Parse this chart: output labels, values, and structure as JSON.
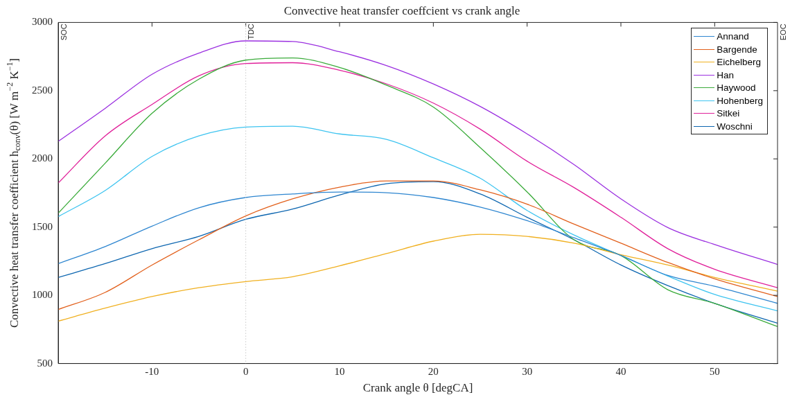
{
  "chart_data": {
    "type": "line",
    "title": "Convective heat transfer coeffcient vs crank angle",
    "xlabel": "Crank angle θ [degCA]",
    "ylabel": "Convective heat transfer coefficient h$_{conv}$(θ) [W m$^{−2}$ K$^{−1}$]",
    "x": [
      -20,
      -15,
      -10,
      -5,
      0,
      5,
      10,
      15,
      20,
      25,
      30,
      35,
      40,
      45,
      50,
      56.7
    ],
    "series": [
      {
        "name": "Annand",
        "color": "#2e86d0",
        "values": [
          1232,
          1357,
          1507,
          1642,
          1717,
          1743,
          1757,
          1752,
          1717,
          1647,
          1547,
          1422,
          1292,
          1146,
          1066,
          941
        ]
      },
      {
        "name": "Bargende",
        "color": "#e2601c",
        "values": [
          896,
          1021,
          1222,
          1407,
          1582,
          1707,
          1793,
          1838,
          1838,
          1773,
          1668,
          1522,
          1382,
          1241,
          1121,
          991
        ]
      },
      {
        "name": "Eichelberg",
        "color": "#f0b020",
        "values": [
          811,
          906,
          991,
          1056,
          1101,
          1136,
          1216,
          1306,
          1397,
          1447,
          1432,
          1382,
          1297,
          1222,
          1131,
          1031
        ]
      },
      {
        "name": "Han",
        "color": "#9b30e0",
        "values": [
          2128,
          2370,
          2620,
          2775,
          2865,
          2860,
          2785,
          2684,
          2549,
          2384,
          2183,
          1958,
          1707,
          1497,
          1372,
          1226
        ]
      },
      {
        "name": "Haywood",
        "color": "#3aab3a",
        "values": [
          1602,
          1968,
          2334,
          2584,
          2724,
          2740,
          2670,
          2540,
          2380,
          2083,
          1758,
          1407,
          1292,
          1041,
          941,
          771
        ]
      },
      {
        "name": "Hohenberg",
        "color": "#3ec4f0",
        "values": [
          1577,
          1768,
          2018,
          2168,
          2233,
          2240,
          2183,
          2143,
          2008,
          1858,
          1622,
          1442,
          1292,
          1141,
          1006,
          886
        ]
      },
      {
        "name": "Sitkei",
        "color": "#e0209a",
        "values": [
          1823,
          2168,
          2399,
          2609,
          2699,
          2705,
          2650,
          2550,
          2409,
          2218,
          1983,
          1790,
          1572,
          1342,
          1191,
          1056
        ]
      },
      {
        "name": "Woschni",
        "color": "#0d66b0",
        "values": [
          1131,
          1232,
          1342,
          1432,
          1557,
          1632,
          1735,
          1818,
          1833,
          1743,
          1572,
          1407,
          1222,
          1071,
          941,
          796
        ]
      }
    ],
    "xlim": [
      -20,
      56.7
    ],
    "xticks": [
      -10,
      0,
      10,
      20,
      30,
      40,
      50
    ],
    "ylim": [
      500,
      3000
    ],
    "yticks": [
      500,
      1000,
      1500,
      2000,
      2500,
      3000
    ],
    "ref_lines": [
      {
        "axis": "x",
        "value": 0,
        "label": "TDC",
        "color": "#c8c8c8",
        "line_style": "dotted"
      }
    ],
    "annotations": [
      "SOC",
      "EOC"
    ],
    "grid": false,
    "legend": "top right",
    "marker": "none",
    "line_style": "solid"
  }
}
